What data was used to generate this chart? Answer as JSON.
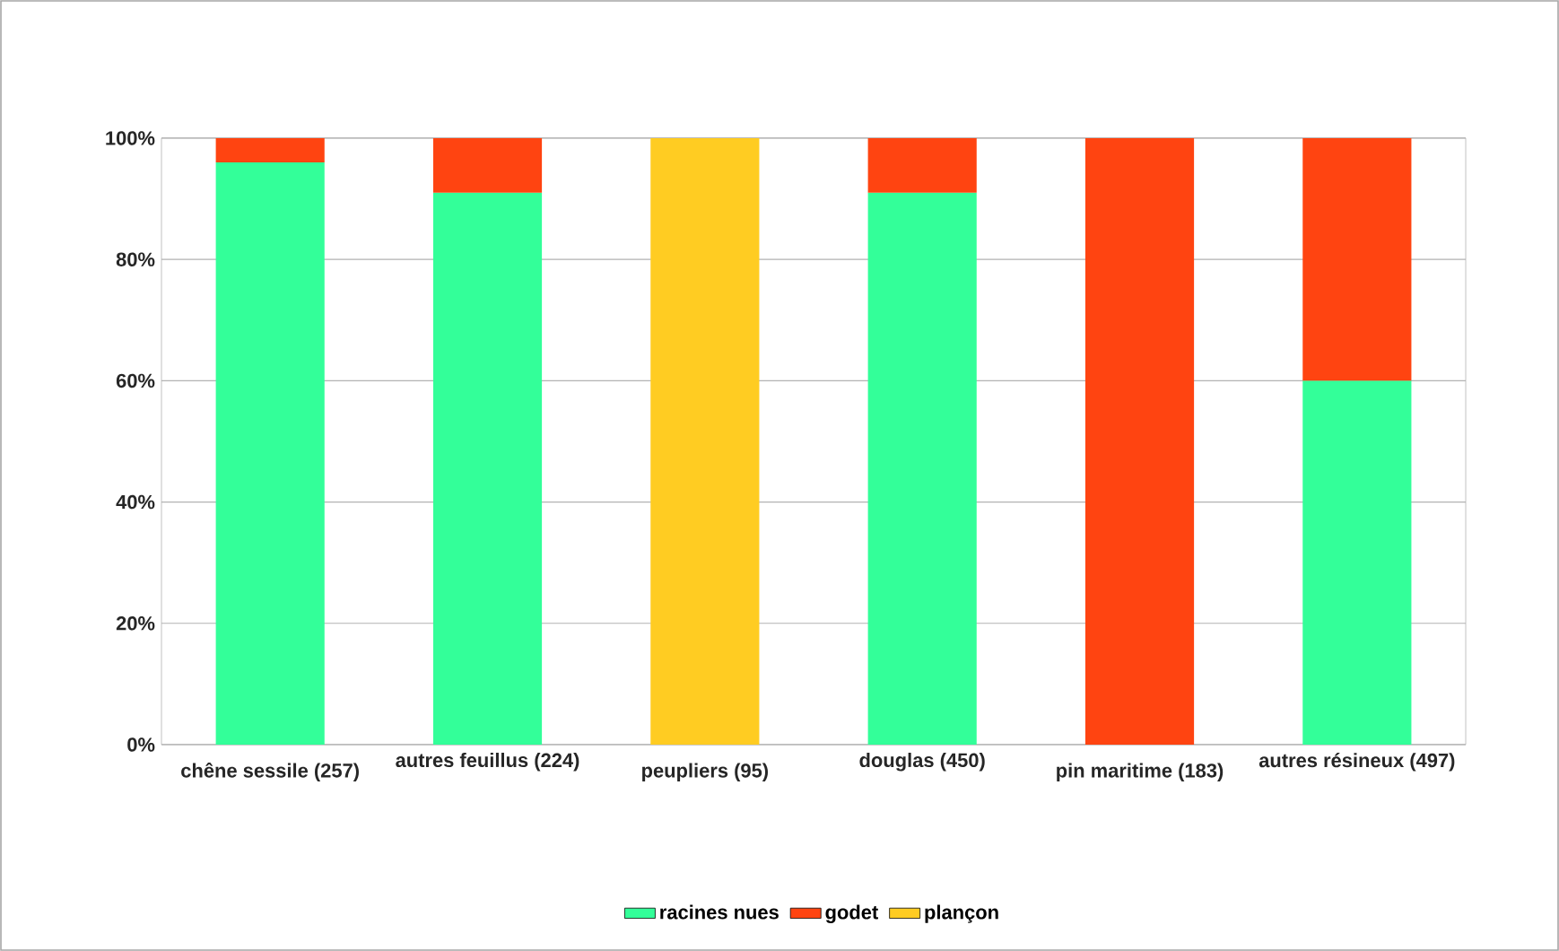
{
  "chart_data": {
    "type": "bar",
    "stacked": true,
    "categories": [
      "chêne sessile (257)",
      "autres feuillus (224)",
      "peupliers (95)",
      "douglas  (450)",
      "pin maritime (183)",
      "autres résineux (497)"
    ],
    "series": [
      {
        "name": "racines nues",
        "color": "#33ff99",
        "values": [
          96,
          91,
          null,
          91,
          null,
          60
        ]
      },
      {
        "name": "godet",
        "color": "#ff4411",
        "values": [
          4,
          9,
          null,
          9,
          100,
          40
        ]
      },
      {
        "name": "plançon",
        "color": "#ffcc22",
        "values": [
          null,
          null,
          100,
          null,
          null,
          null
        ]
      }
    ],
    "ylim": [
      0,
      100
    ],
    "yticks": [
      {
        "value": 0,
        "label": "0%"
      },
      {
        "value": 20,
        "label": "20%"
      },
      {
        "value": 40,
        "label": "40%"
      },
      {
        "value": 60,
        "label": "60%"
      },
      {
        "value": 80,
        "label": "80%"
      },
      {
        "value": 100,
        "label": "100%"
      }
    ],
    "grid": "y",
    "legend": "bottom"
  }
}
